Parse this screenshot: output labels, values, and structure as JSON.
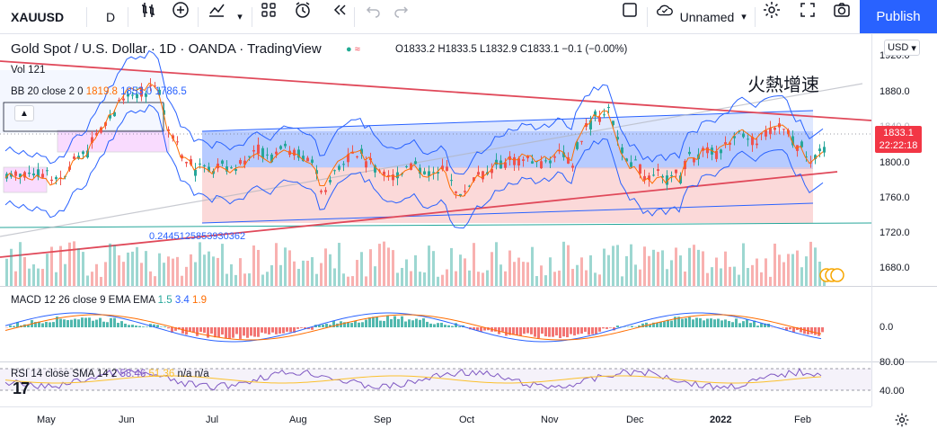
{
  "toolbar": {
    "symbol": "XAUUSD",
    "interval": "D",
    "layout_name": "Unnamed",
    "publish_label": "Publish"
  },
  "legend": {
    "title": "Gold Spot / U.S. Dollar · 1D · OANDA · TradingView",
    "ohlc": "O1833.2 H1833.5 L1832.9 C1833.1 −0.1 (−0.00%)",
    "vol": "Vol  121",
    "bb_label": "BB 20 close 2 0",
    "bb_mid": "1819.8",
    "bb_upper": "1853.0",
    "bb_lower": "1786.5",
    "macd_label": "MACD 12 26 close 9 EMA EMA",
    "macd_v1": "1.5",
    "macd_v2": "3.4",
    "macd_v3": "1.9",
    "rsi_label": "RSI 14 close SMA 14 2",
    "rsi_v1": "58.46",
    "rsi_v2": "51.36",
    "rsi_v3": "n/a n/a"
  },
  "annotation": "火熱增速",
  "fib_level": "0.2445125853930362",
  "currency": "USD",
  "price_tag": {
    "price": "1833.1",
    "countdown": "22:22:18"
  },
  "price_axis": [
    "1920.0",
    "1880.0",
    "1840.0",
    "1800.0",
    "1760.0",
    "1720.0",
    "1680.0"
  ],
  "macd_axis": [
    "0.0"
  ],
  "rsi_axis": [
    "80.00",
    "40.00"
  ],
  "time_axis": [
    "May",
    "Jun",
    "Jul",
    "Aug",
    "Sep",
    "Oct",
    "Nov",
    "Dec",
    "2022",
    "Feb"
  ],
  "colors": {
    "up": "#26a69a",
    "down": "#ef5350",
    "accent": "#2962ff",
    "bb": "#2962ff",
    "trend": "#e0495a"
  }
}
